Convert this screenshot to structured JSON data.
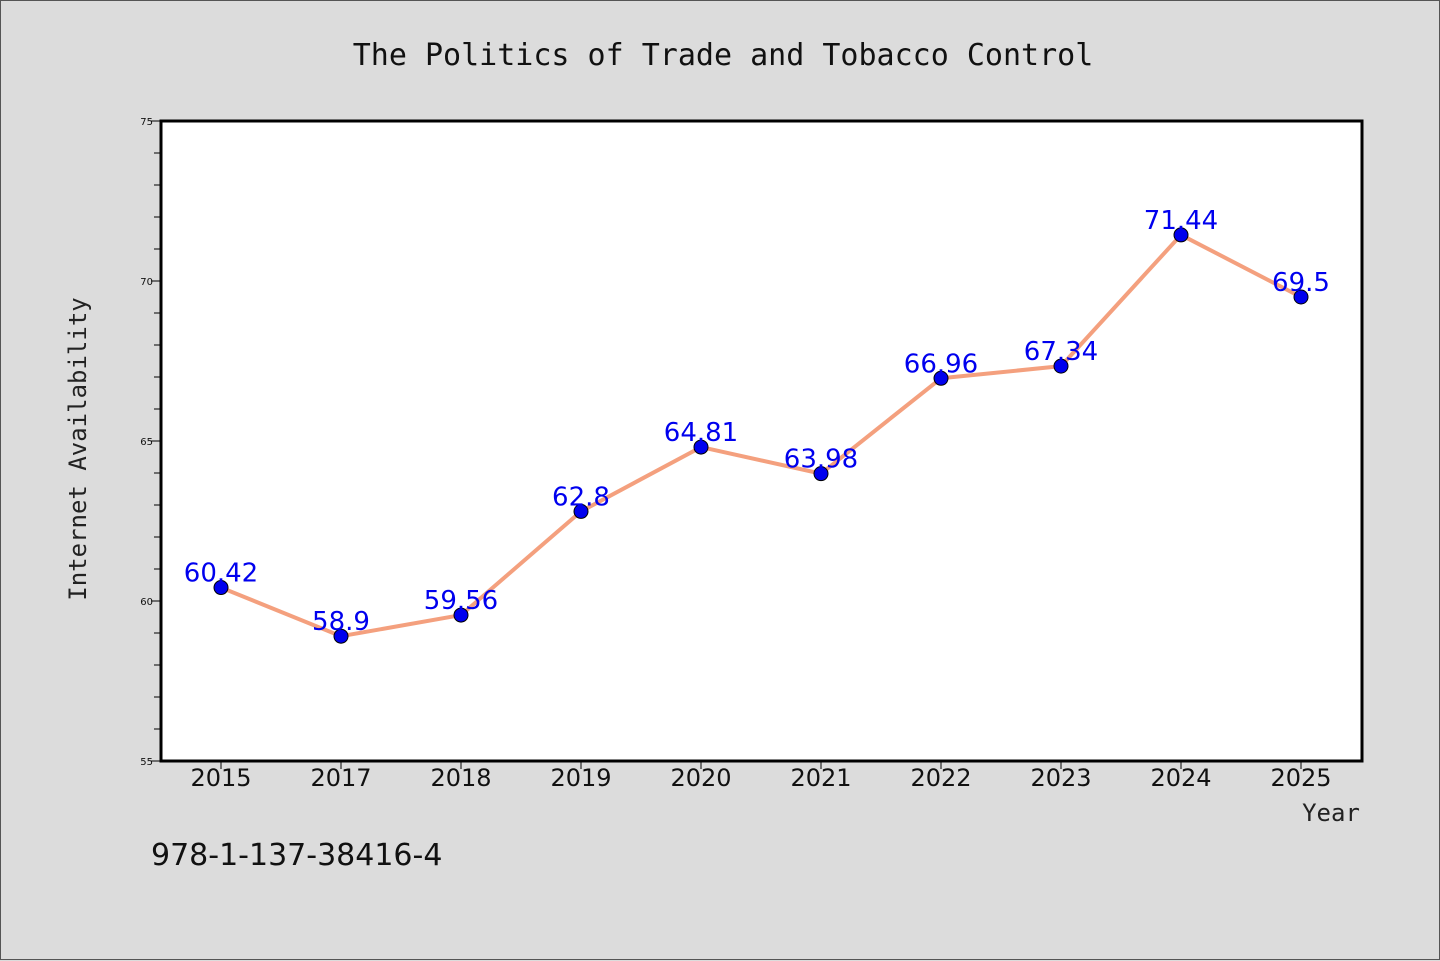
{
  "chart_data": {
    "type": "line",
    "title": "The Politics of Trade and Tobacco Control",
    "xlabel": "Year",
    "ylabel": "Internet Availability",
    "categories": [
      "2015",
      "2017",
      "2018",
      "2019",
      "2020",
      "2021",
      "2022",
      "2023",
      "2024",
      "2025"
    ],
    "series": [
      {
        "values": [
          60.42,
          58.9,
          59.56,
          62.8,
          64.81,
          63.98,
          66.96,
          67.34,
          71.44,
          69.5
        ],
        "labels": [
          "60.42",
          "58.9",
          "59.56",
          "62.8",
          "64.81",
          "63.98",
          "66.96",
          "67.34",
          "71.44",
          "69.5"
        ]
      }
    ],
    "ylim": [
      55,
      75
    ],
    "yticks": [
      55,
      60,
      65,
      70,
      75
    ],
    "grid": false,
    "line_color": "#f4a07e",
    "marker_color": "#0000ee",
    "label_color": "#0000ee"
  },
  "footer": {
    "isbn": "978-1-137-38416-4"
  }
}
